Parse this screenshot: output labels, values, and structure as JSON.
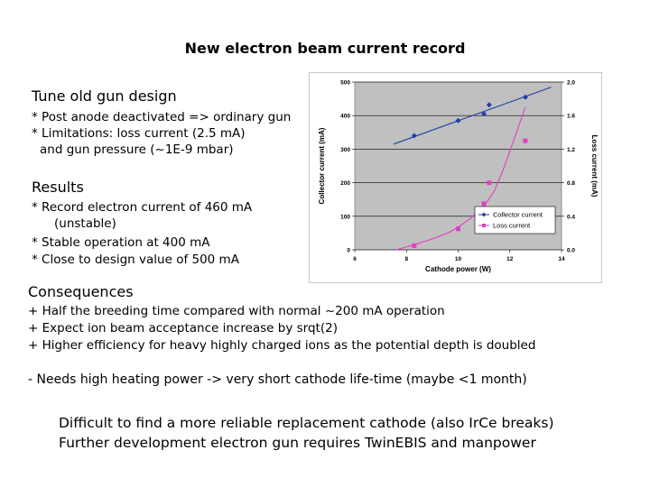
{
  "slide": {
    "title": "New electron beam current record",
    "tune": {
      "heading": "Tune old gun design",
      "lines": [
        "* Post anode deactivated => ordinary gun",
        "* Limitations: loss current (2.5 mA)",
        "and gun pressure (~1E-9 mbar)"
      ]
    },
    "results": {
      "heading": "Results",
      "lines": [
        "* Record electron current of 460 mA",
        "(unstable)",
        "* Stable operation at 400 mA",
        "* Close to design value of 500 mA"
      ]
    },
    "consequences": {
      "heading": "Consequences",
      "lines": [
        "+ Half the breeding time compared with normal ~200 mA operation",
        "+ Expect ion beam acceptance increase by srqt(2)",
        "+ Higher efficiency for heavy highly charged ions as the potential depth is doubled"
      ],
      "minus": "- Needs high heating power -> very short cathode life-time (maybe <1 month)"
    },
    "closing": [
      "Difficult to find a more reliable replacement cathode (also IrCe breaks)",
      "Further development electron gun requires TwinEBIS and manpower"
    ]
  },
  "chart_data": {
    "type": "scatter",
    "xlabel": "Cathode power (W)",
    "ylabel": "Collector current (mA)",
    "y2label": "Loss current (mA)",
    "xlim": [
      6,
      14
    ],
    "ylim": [
      0,
      500
    ],
    "y2lim": [
      0,
      2.0
    ],
    "xticks": [
      "6",
      "8",
      "10",
      "12",
      "14"
    ],
    "yticks": [
      "0",
      "100",
      "200",
      "300",
      "400",
      "500"
    ],
    "y2ticks": [
      "0.0",
      "0.4",
      "0.8",
      "1.2",
      "1.6",
      "2.0"
    ],
    "legend_position": "bottom-right inside",
    "plot_background": "#c0c0c0",
    "series": [
      {
        "name": "Collector current",
        "axis": "left",
        "color": "#1f3fa8",
        "marker": "diamond",
        "x": [
          8.3,
          10.0,
          11.0,
          11.2,
          12.6
        ],
        "y": [
          340,
          385,
          405,
          432,
          455
        ],
        "trend_line": {
          "x": [
            7.5,
            13.6
          ],
          "y": [
            315,
            485
          ]
        }
      },
      {
        "name": "Loss current",
        "axis": "right",
        "color": "#e040c8",
        "marker": "square",
        "x": [
          8.3,
          10.0,
          11.0,
          11.2,
          12.6
        ],
        "y": [
          0.05,
          0.25,
          0.55,
          0.8,
          1.3
        ],
        "trend_curve": {
          "x": [
            7.6,
            8.3,
            9.0,
            9.6,
            10.0,
            10.5,
            11.0,
            11.4,
            11.8,
            12.2,
            12.6
          ],
          "y": [
            0.0,
            0.06,
            0.13,
            0.2,
            0.27,
            0.38,
            0.52,
            0.7,
            1.0,
            1.35,
            1.7
          ]
        }
      }
    ]
  }
}
